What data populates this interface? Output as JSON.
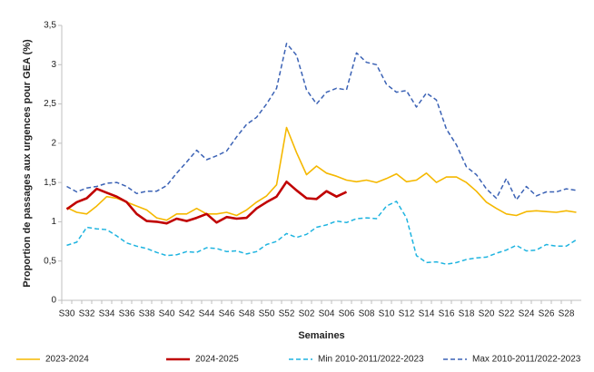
{
  "chart_data": {
    "type": "line",
    "x_label": "Semaines",
    "y_label": "Proportion de passages aux urgences pour GEA (%)",
    "categories": [
      "S30",
      null,
      "S32",
      null,
      "S34",
      null,
      "S36",
      null,
      "S38",
      null,
      "S40",
      null,
      "S42",
      null,
      "S44",
      null,
      "S46",
      null,
      "S48",
      null,
      "S50",
      null,
      "S52",
      null,
      "S02",
      null,
      "S04",
      null,
      "S06",
      null,
      "S08",
      null,
      "S10",
      null,
      "S12",
      null,
      "S14",
      null,
      "S16",
      null,
      "S18",
      null,
      "S20",
      null,
      "S22",
      null,
      "S24",
      null,
      "S26",
      null,
      "S28",
      null
    ],
    "ylim": [
      0,
      3.5
    ],
    "yticks": [
      0,
      {
        "value": 0.5,
        "label": "0,5"
      },
      1,
      {
        "value": 1.5,
        "label": "1,5"
      },
      2,
      {
        "value": 2.5,
        "label": "2,5"
      },
      3,
      {
        "value": 3.5,
        "label": "3,5"
      }
    ],
    "series": [
      {
        "name": "2023-2024",
        "color": "#f5b800",
        "dashed": false,
        "values": [
          1.18,
          1.12,
          1.1,
          1.2,
          1.32,
          1.3,
          1.25,
          1.2,
          1.15,
          1.05,
          1.02,
          1.1,
          1.1,
          1.17,
          1.1,
          1.1,
          1.12,
          1.08,
          1.15,
          1.25,
          1.33,
          1.47,
          2.2,
          1.88,
          1.6,
          1.71,
          1.62,
          1.58,
          1.53,
          1.51,
          1.53,
          1.5,
          1.55,
          1.61,
          1.51,
          1.53,
          1.62,
          1.5,
          1.57,
          1.57,
          1.5,
          1.39,
          1.25,
          1.17,
          1.1,
          1.08,
          1.13,
          1.14,
          1.13,
          1.12,
          1.14,
          1.12
        ]
      },
      {
        "name": "2024-2025",
        "color": "#c00000",
        "dashed": false,
        "values": [
          1.16,
          1.25,
          1.3,
          1.42,
          1.37,
          1.32,
          1.25,
          1.1,
          1.01,
          1.0,
          0.98,
          1.04,
          1.01,
          1.05,
          1.1,
          0.99,
          1.06,
          1.04,
          1.05,
          1.17,
          1.25,
          1.32,
          1.51,
          1.4,
          1.3,
          1.29,
          1.39,
          1.32,
          1.38,
          null,
          null,
          null,
          null,
          null,
          null,
          null,
          null,
          null,
          null,
          null,
          null,
          null,
          null,
          null,
          null,
          null,
          null,
          null,
          null,
          null,
          null,
          null
        ]
      },
      {
        "name": "Min 2010-2011/2022-2023",
        "color": "#1fb4e0",
        "dashed": true,
        "values": [
          0.7,
          0.74,
          0.93,
          0.91,
          0.9,
          0.82,
          0.73,
          0.69,
          0.66,
          0.61,
          0.57,
          0.58,
          0.62,
          0.61,
          0.67,
          0.66,
          0.62,
          0.63,
          0.59,
          0.62,
          0.71,
          0.75,
          0.85,
          0.8,
          0.84,
          0.93,
          0.96,
          1.01,
          0.99,
          1.04,
          1.05,
          1.04,
          1.2,
          1.26,
          1.05,
          0.57,
          0.48,
          0.49,
          0.46,
          0.48,
          0.52,
          0.54,
          0.55,
          0.6,
          0.64,
          0.7,
          0.63,
          0.64,
          0.71,
          0.69,
          0.69,
          0.77
        ]
      },
      {
        "name": "Max 2010-2011/2022-2023",
        "color": "#3b62b5",
        "dashed": true,
        "values": [
          1.45,
          1.38,
          1.43,
          1.45,
          1.49,
          1.5,
          1.45,
          1.36,
          1.39,
          1.39,
          1.46,
          1.62,
          1.76,
          1.91,
          1.79,
          1.84,
          1.9,
          2.08,
          2.24,
          2.33,
          2.5,
          2.7,
          3.27,
          3.12,
          2.68,
          2.5,
          2.65,
          2.7,
          2.68,
          3.15,
          3.03,
          3.0,
          2.75,
          2.65,
          2.67,
          2.46,
          2.64,
          2.55,
          2.18,
          1.98,
          1.7,
          1.6,
          1.42,
          1.3,
          1.55,
          1.28,
          1.45,
          1.33,
          1.38,
          1.38,
          1.42,
          1.4
        ]
      }
    ]
  }
}
